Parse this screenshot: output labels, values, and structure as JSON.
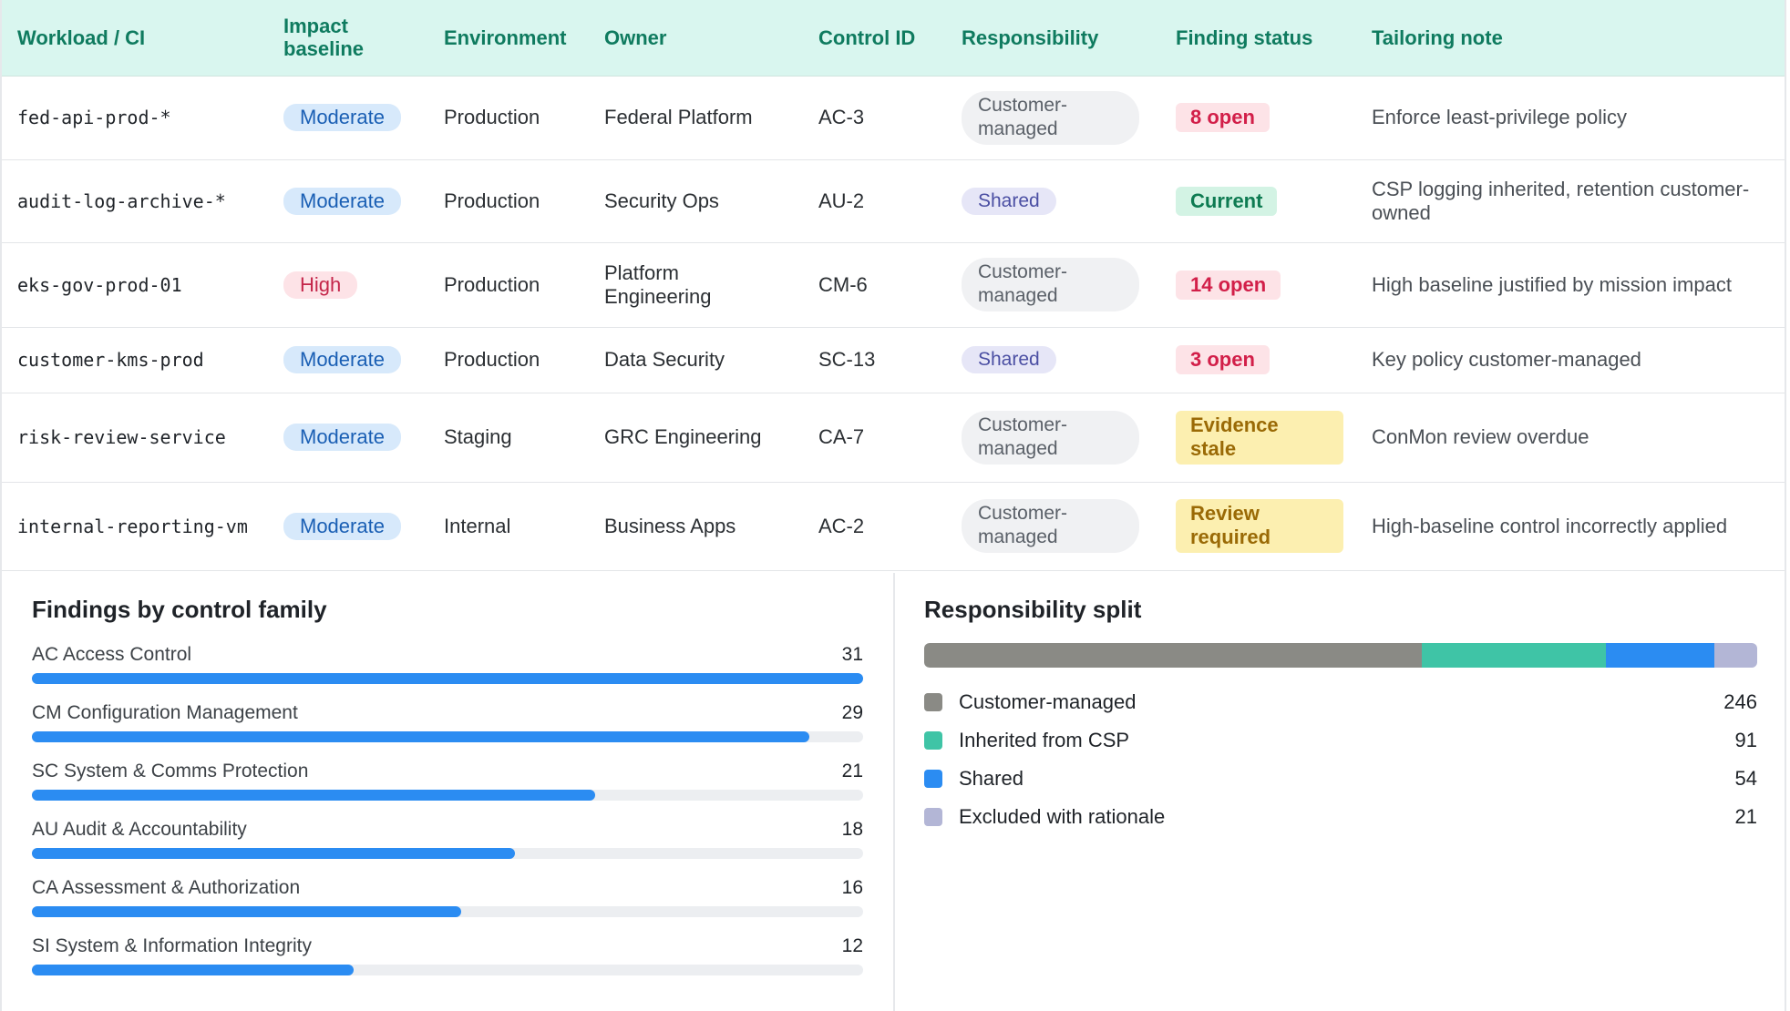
{
  "table": {
    "headers": {
      "workload": "Workload / CI",
      "impact": "Impact baseline",
      "environment": "Environment",
      "owner": "Owner",
      "control": "Control ID",
      "responsibility": "Responsibility",
      "status": "Finding status",
      "note": "Tailoring note"
    },
    "rows": [
      {
        "workload": "fed-api-prod-*",
        "impact": "Moderate",
        "environment": "Production",
        "owner": "Federal Platform",
        "control": "AC-3",
        "responsibility": "Customer-managed",
        "status": "8 open",
        "note": "Enforce least-privilege policy"
      },
      {
        "workload": "audit-log-archive-*",
        "impact": "Moderate",
        "environment": "Production",
        "owner": "Security Ops",
        "control": "AU-2",
        "responsibility": "Shared",
        "status": "Current",
        "note": "CSP logging inherited, retention customer-owned"
      },
      {
        "workload": "eks-gov-prod-01",
        "impact": "High",
        "environment": "Production",
        "owner": "Platform Engineering",
        "control": "CM-6",
        "responsibility": "Customer-managed",
        "status": "14 open",
        "note": "High baseline justified by mission impact"
      },
      {
        "workload": "customer-kms-prod",
        "impact": "Moderate",
        "environment": "Production",
        "owner": "Data Security",
        "control": "SC-13",
        "responsibility": "Shared",
        "status": "3 open",
        "note": "Key policy customer-managed"
      },
      {
        "workload": "risk-review-service",
        "impact": "Moderate",
        "environment": "Staging",
        "owner": "GRC Engineering",
        "control": "CA-7",
        "responsibility": "Customer-managed",
        "status": "Evidence stale",
        "note": "ConMon review overdue"
      },
      {
        "workload": "internal-reporting-vm",
        "impact": "Moderate",
        "environment": "Internal",
        "owner": "Business Apps",
        "control": "AC-2",
        "responsibility": "Customer-managed",
        "status": "Review required",
        "note": "High-baseline control incorrectly applied"
      }
    ]
  },
  "findings_panel": {
    "title": "Findings by control family",
    "max": 31,
    "families": [
      {
        "label": "AC Access Control",
        "value": 31
      },
      {
        "label": "CM Configuration Management",
        "value": 29
      },
      {
        "label": "SC System & Comms Protection",
        "value": 21
      },
      {
        "label": "AU Audit & Accountability",
        "value": 18
      },
      {
        "label": "CA Assessment & Authorization",
        "value": 16
      },
      {
        "label": "SI System & Information Integrity",
        "value": 12
      }
    ]
  },
  "split_panel": {
    "title": "Responsibility split",
    "segments": [
      {
        "label": "Customer-managed",
        "value": 246,
        "color": "#8a8a85"
      },
      {
        "label": "Inherited from CSP",
        "value": 91,
        "color": "#3fc4a6"
      },
      {
        "label": "Shared",
        "value": 54,
        "color": "#2b8cf2"
      },
      {
        "label": "Excluded with rationale",
        "value": 21,
        "color": "#b3b6d6"
      }
    ]
  },
  "colors": {
    "header_bg": "#d9f6ef",
    "header_text": "#0f7b5f",
    "bar_fill": "#2b8cf2"
  }
}
